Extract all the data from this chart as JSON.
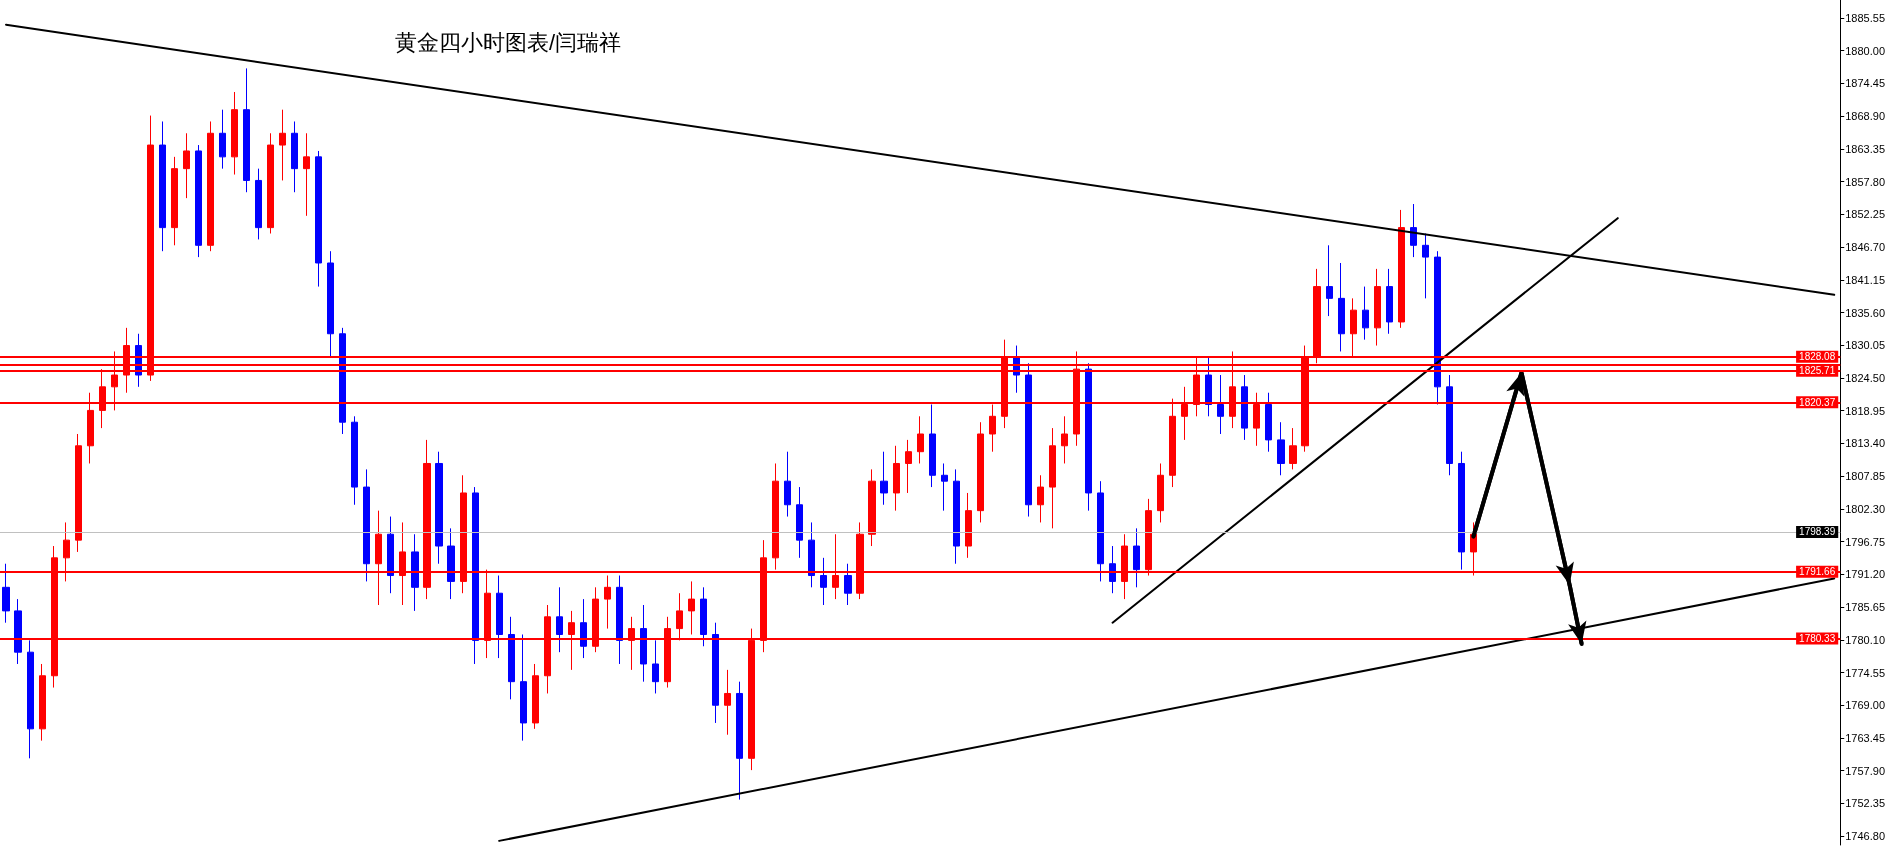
{
  "chart_data": {
    "type": "candlestick",
    "title": "黄金四小时图表/闫瑞祥",
    "categories": [
      null,
      null,
      null,
      null,
      null,
      null,
      null,
      null,
      null,
      null,
      null,
      null,
      null,
      null,
      null,
      null,
      null,
      null,
      null,
      null,
      null,
      null,
      null,
      null,
      null,
      null,
      null,
      null,
      null,
      null,
      null,
      null,
      null,
      null,
      null,
      null,
      null,
      null,
      null,
      null,
      null,
      null,
      null,
      null,
      null,
      null,
      null,
      null,
      null,
      null,
      null,
      null,
      null,
      null,
      null,
      null,
      null,
      null,
      null,
      null,
      null,
      null,
      null,
      null,
      null,
      null,
      null,
      null,
      null,
      null,
      null,
      null,
      null,
      null,
      null,
      null,
      null,
      null,
      null,
      null,
      null,
      null,
      null,
      null,
      null,
      null,
      null,
      null,
      null,
      null,
      null,
      null,
      null,
      null,
      null,
      null,
      null,
      null,
      null,
      null,
      null,
      null,
      null,
      null,
      null,
      null,
      null,
      null,
      null,
      null,
      null,
      null,
      null,
      null,
      null,
      null,
      null,
      null,
      null,
      null,
      null,
      null,
      null,
      null,
      null,
      null,
      null,
      null,
      null,
      null,
      null,
      null,
      null,
      null,
      null,
      null,
      null,
      null,
      null,
      null,
      null,
      null,
      null,
      null,
      null,
      null,
      null,
      null,
      null,
      null,
      null,
      null,
      null
    ],
    "ohlc": [
      [
        1789,
        1793,
        1783,
        1785
      ],
      [
        1785,
        1787,
        1776,
        1778
      ],
      [
        1778,
        1780,
        1760,
        1765
      ],
      [
        1765,
        1776,
        1763,
        1774
      ],
      [
        1774,
        1796,
        1772,
        1794
      ],
      [
        1794,
        1800,
        1790,
        1797
      ],
      [
        1797,
        1815,
        1795,
        1813
      ],
      [
        1813,
        1822,
        1810,
        1819
      ],
      [
        1819,
        1826,
        1816,
        1823
      ],
      [
        1823,
        1829,
        1819,
        1825
      ],
      [
        1825,
        1833,
        1822,
        1830
      ],
      [
        1830,
        1832,
        1823,
        1825
      ],
      [
        1825,
        1869,
        1824,
        1864
      ],
      [
        1864,
        1868,
        1846,
        1850
      ],
      [
        1850,
        1862,
        1847,
        1860
      ],
      [
        1860,
        1866,
        1855,
        1863
      ],
      [
        1863,
        1864,
        1845,
        1847
      ],
      [
        1847,
        1868,
        1846,
        1866
      ],
      [
        1866,
        1870,
        1860,
        1862
      ],
      [
        1862,
        1873,
        1859,
        1870
      ],
      [
        1870,
        1877,
        1856,
        1858
      ],
      [
        1858,
        1860,
        1848,
        1850
      ],
      [
        1850,
        1866,
        1849,
        1864
      ],
      [
        1864,
        1870,
        1858,
        1866
      ],
      [
        1866,
        1868,
        1856,
        1860
      ],
      [
        1860,
        1866,
        1852,
        1862
      ],
      [
        1862,
        1863,
        1840,
        1844
      ],
      [
        1844,
        1846,
        1828,
        1832
      ],
      [
        1832,
        1833,
        1815,
        1817
      ],
      [
        1817,
        1818,
        1803,
        1806
      ],
      [
        1806,
        1809,
        1790,
        1793
      ],
      [
        1793,
        1802,
        1786,
        1798
      ],
      [
        1798,
        1801,
        1788,
        1791
      ],
      [
        1791,
        1800,
        1786,
        1795
      ],
      [
        1795,
        1798,
        1785,
        1789
      ],
      [
        1789,
        1814,
        1787,
        1810
      ],
      [
        1810,
        1812,
        1793,
        1796
      ],
      [
        1796,
        1799,
        1787,
        1790
      ],
      [
        1790,
        1808,
        1788,
        1805
      ],
      [
        1805,
        1806,
        1776,
        1780
      ],
      [
        1780,
        1792,
        1777,
        1788
      ],
      [
        1788,
        1791,
        1777,
        1781
      ],
      [
        1781,
        1784,
        1770,
        1773
      ],
      [
        1773,
        1781,
        1763,
        1766
      ],
      [
        1766,
        1776,
        1765,
        1774
      ],
      [
        1774,
        1786,
        1771,
        1784
      ],
      [
        1784,
        1789,
        1778,
        1781
      ],
      [
        1781,
        1785,
        1775,
        1783
      ],
      [
        1783,
        1787,
        1777,
        1779
      ],
      [
        1779,
        1789,
        1778,
        1787
      ],
      [
        1787,
        1791,
        1782,
        1789
      ],
      [
        1789,
        1791,
        1776,
        1780
      ],
      [
        1780,
        1784,
        1775,
        1782
      ],
      [
        1782,
        1786,
        1773,
        1776
      ],
      [
        1776,
        1780,
        1771,
        1773
      ],
      [
        1773,
        1784,
        1772,
        1782
      ],
      [
        1782,
        1788,
        1780,
        1785
      ],
      [
        1785,
        1790,
        1781,
        1787
      ],
      [
        1787,
        1789,
        1779,
        1781
      ],
      [
        1781,
        1783,
        1766,
        1769
      ],
      [
        1769,
        1775,
        1764,
        1771
      ],
      [
        1771,
        1773,
        1753,
        1760
      ],
      [
        1760,
        1782,
        1758,
        1780
      ],
      [
        1780,
        1797,
        1778,
        1794
      ],
      [
        1794,
        1810,
        1792,
        1807
      ],
      [
        1807,
        1812,
        1801,
        1803
      ],
      [
        1803,
        1806,
        1794,
        1797
      ],
      [
        1797,
        1800,
        1789,
        1791
      ],
      [
        1791,
        1794,
        1786,
        1789
      ],
      [
        1789,
        1798,
        1787,
        1791
      ],
      [
        1791,
        1793,
        1786,
        1788
      ],
      [
        1788,
        1800,
        1787,
        1798
      ],
      [
        1798,
        1809,
        1796,
        1807
      ],
      [
        1807,
        1812,
        1803,
        1805
      ],
      [
        1805,
        1813,
        1802,
        1810
      ],
      [
        1810,
        1814,
        1805,
        1812
      ],
      [
        1812,
        1818,
        1810,
        1815
      ],
      [
        1815,
        1820,
        1806,
        1808
      ],
      [
        1808,
        1810,
        1802,
        1807
      ],
      [
        1807,
        1809,
        1793,
        1796
      ],
      [
        1796,
        1805,
        1794,
        1802
      ],
      [
        1802,
        1817,
        1800,
        1815
      ],
      [
        1815,
        1820,
        1812,
        1818
      ],
      [
        1818,
        1831,
        1816,
        1828
      ],
      [
        1828,
        1830,
        1822,
        1825
      ],
      [
        1825,
        1827,
        1801,
        1803
      ],
      [
        1803,
        1808,
        1800,
        1806
      ],
      [
        1806,
        1816,
        1799,
        1813
      ],
      [
        1813,
        1818,
        1810,
        1815
      ],
      [
        1815,
        1829,
        1813,
        1826
      ],
      [
        1826,
        1827,
        1802,
        1805
      ],
      [
        1805,
        1807,
        1790,
        1793
      ],
      [
        1793,
        1796,
        1788,
        1790
      ],
      [
        1790,
        1798,
        1787,
        1796
      ],
      [
        1796,
        1799,
        1789,
        1792
      ],
      [
        1792,
        1804,
        1791,
        1802
      ],
      [
        1802,
        1810,
        1800,
        1808
      ],
      [
        1808,
        1821,
        1806,
        1818
      ],
      [
        1818,
        1823,
        1814,
        1820
      ],
      [
        1820,
        1828,
        1818,
        1825
      ],
      [
        1825,
        1828,
        1818,
        1820
      ],
      [
        1820,
        1825,
        1815,
        1818
      ],
      [
        1818,
        1829,
        1816,
        1823
      ],
      [
        1823,
        1825,
        1814,
        1816
      ],
      [
        1816,
        1822,
        1813,
        1820
      ],
      [
        1820,
        1822,
        1812,
        1814
      ],
      [
        1814,
        1817,
        1808,
        1810
      ],
      [
        1810,
        1816,
        1809,
        1813
      ],
      [
        1813,
        1830,
        1812,
        1828
      ],
      [
        1828,
        1843,
        1827,
        1840
      ],
      [
        1840,
        1847,
        1835,
        1838
      ],
      [
        1838,
        1844,
        1829,
        1832
      ],
      [
        1832,
        1838,
        1828,
        1836
      ],
      [
        1836,
        1840,
        1831,
        1833
      ],
      [
        1833,
        1843,
        1830,
        1840
      ],
      [
        1840,
        1843,
        1832,
        1834
      ],
      [
        1834,
        1853,
        1833,
        1850
      ],
      [
        1850,
        1854,
        1845,
        1847
      ],
      [
        1847,
        1849,
        1838,
        1845
      ],
      [
        1845,
        1846,
        1820,
        1823
      ],
      [
        1823,
        1825,
        1808,
        1810
      ],
      [
        1810,
        1812,
        1792,
        1795
      ],
      [
        1795,
        1800,
        1791,
        1798
      ],
      null,
      null,
      null,
      null,
      null,
      null,
      null,
      null,
      null,
      null,
      null,
      null,
      null,
      null,
      null,
      null,
      null,
      null,
      null,
      null,
      null,
      null,
      null,
      null,
      null,
      null,
      null,
      null,
      null,
      null
    ],
    "colors": [
      "#0000ff",
      "#0000ff",
      "#0000ff",
      "#ff0000",
      "#ff0000",
      "#ff0000",
      "#ff0000",
      "#ff0000",
      "#ff0000",
      "#ff0000",
      "#ff0000",
      "#0000ff",
      "#ff0000",
      "#0000ff",
      "#ff0000",
      "#ff0000",
      "#0000ff",
      "#ff0000",
      "#0000ff",
      "#ff0000",
      "#0000ff",
      "#0000ff",
      "#ff0000",
      "#ff0000",
      "#0000ff",
      "#ff0000",
      "#0000ff",
      "#0000ff",
      "#0000ff",
      "#0000ff",
      "#0000ff",
      "#ff0000",
      "#0000ff",
      "#ff0000",
      "#0000ff",
      "#ff0000",
      "#0000ff",
      "#0000ff",
      "#ff0000",
      "#0000ff",
      "#ff0000",
      "#0000ff",
      "#0000ff",
      "#0000ff",
      "#ff0000",
      "#ff0000",
      "#0000ff",
      "#ff0000",
      "#0000ff",
      "#ff0000",
      "#ff0000",
      "#0000ff",
      "#ff0000",
      "#0000ff",
      "#0000ff",
      "#ff0000",
      "#ff0000",
      "#ff0000",
      "#0000ff",
      "#0000ff",
      "#ff0000",
      "#0000ff",
      "#ff0000",
      "#ff0000",
      "#ff0000",
      "#0000ff",
      "#0000ff",
      "#0000ff",
      "#0000ff",
      "#ff0000",
      "#0000ff",
      "#ff0000",
      "#ff0000",
      "#0000ff",
      "#ff0000",
      "#ff0000",
      "#ff0000",
      "#0000ff",
      "#0000ff",
      "#0000ff",
      "#ff0000",
      "#ff0000",
      "#ff0000",
      "#ff0000",
      "#0000ff",
      "#0000ff",
      "#ff0000",
      "#ff0000",
      "#ff0000",
      "#ff0000",
      "#0000ff",
      "#0000ff",
      "#0000ff",
      "#ff0000",
      "#0000ff",
      "#ff0000",
      "#ff0000",
      "#ff0000",
      "#ff0000",
      "#ff0000",
      "#0000ff",
      "#0000ff",
      "#ff0000",
      "#0000ff",
      "#ff0000",
      "#0000ff",
      "#0000ff",
      "#ff0000",
      "#ff0000",
      "#ff0000",
      "#0000ff",
      "#0000ff",
      "#ff0000",
      "#0000ff",
      "#ff0000",
      "#0000ff",
      "#ff0000",
      "#0000ff",
      "#0000ff",
      "#0000ff",
      "#0000ff",
      "#0000ff",
      "#ff0000",
      null,
      null,
      null,
      null,
      null,
      null,
      null,
      null,
      null,
      null,
      null,
      null,
      null,
      null,
      null,
      null,
      null,
      null,
      null,
      null,
      null,
      null,
      null,
      null,
      null,
      null,
      null,
      null,
      null,
      null
    ],
    "series": [
      {
        "type": "line",
        "color": "#000000",
        "values": [
          1884.4,
          null,
          null,
          null,
          null,
          null,
          null,
          null,
          null,
          null,
          null,
          null,
          null,
          null,
          null,
          null,
          null,
          null,
          null,
          null,
          null,
          null,
          null,
          null,
          null,
          null,
          null,
          null,
          null,
          null,
          null,
          null,
          null,
          null,
          null,
          null,
          null,
          null,
          null,
          null,
          null,
          null,
          null,
          null,
          null,
          null,
          null,
          null,
          null,
          null,
          null,
          null,
          null,
          null,
          null,
          null,
          null,
          null,
          null,
          null,
          null,
          null,
          null,
          null,
          null,
          null,
          null,
          null,
          null,
          null,
          null,
          null,
          null,
          null,
          null,
          null,
          null,
          null,
          null,
          null,
          null,
          null,
          null,
          null,
          null,
          null,
          null,
          null,
          null,
          null,
          null,
          null,
          null,
          null,
          null,
          null,
          null,
          null,
          null,
          null,
          null,
          null,
          null,
          null,
          null,
          null,
          null,
          null,
          null,
          null,
          null,
          null,
          null,
          null,
          null,
          null,
          null,
          null,
          null,
          null,
          null,
          null,
          null,
          null,
          null,
          null,
          null,
          null,
          null,
          null,
          null,
          null,
          null,
          null,
          null,
          null,
          null,
          null,
          null,
          null,
          null,
          null,
          null,
          null,
          null,
          null,
          null,
          null,
          null,
          null,
          null,
          null,
          1838.6
        ]
      },
      {
        "type": "line",
        "color": "#000000",
        "values": [
          null,
          null,
          null,
          null,
          null,
          null,
          null,
          null,
          null,
          null,
          null,
          null,
          null,
          null,
          null,
          null,
          null,
          null,
          null,
          null,
          null,
          null,
          null,
          null,
          null,
          null,
          null,
          null,
          null,
          null,
          null,
          null,
          null,
          null,
          null,
          null,
          null,
          null,
          null,
          null,
          null,
          1746.0,
          null,
          null,
          null,
          null,
          null,
          null,
          null,
          null,
          null,
          null,
          null,
          null,
          null,
          null,
          null,
          null,
          null,
          null,
          null,
          null,
          null,
          null,
          null,
          null,
          null,
          null,
          null,
          null,
          null,
          null,
          null,
          null,
          null,
          null,
          null,
          null,
          null,
          null,
          null,
          null,
          null,
          null,
          null,
          null,
          null,
          null,
          null,
          null,
          null,
          null,
          null,
          null,
          null,
          null,
          null,
          null,
          null,
          null,
          null,
          null,
          null,
          null,
          null,
          null,
          null,
          null,
          null,
          null,
          null,
          null,
          null,
          null,
          null,
          null,
          null,
          null,
          null,
          null,
          null,
          null,
          null,
          null,
          null,
          null,
          null,
          null,
          null,
          null,
          null,
          null,
          null,
          null,
          null,
          null,
          null,
          null,
          null,
          null,
          null,
          null,
          null,
          null,
          null,
          null,
          null,
          null,
          null,
          null,
          null,
          null,
          1790.5
        ]
      },
      {
        "type": "line",
        "color": "#000000",
        "values": [
          null,
          null,
          null,
          null,
          null,
          null,
          null,
          null,
          null,
          null,
          null,
          null,
          null,
          null,
          null,
          null,
          null,
          null,
          null,
          null,
          null,
          null,
          null,
          null,
          null,
          null,
          null,
          null,
          null,
          null,
          null,
          null,
          null,
          null,
          null,
          null,
          null,
          null,
          null,
          null,
          null,
          null,
          null,
          null,
          null,
          null,
          null,
          null,
          null,
          null,
          null,
          null,
          null,
          null,
          null,
          null,
          null,
          null,
          null,
          null,
          null,
          null,
          null,
          null,
          null,
          null,
          null,
          null,
          null,
          null,
          null,
          null,
          null,
          null,
          null,
          null,
          null,
          null,
          null,
          null,
          null,
          null,
          null,
          null,
          null,
          null,
          null,
          null,
          null,
          null,
          null,
          null,
          1783.0,
          null,
          null,
          null,
          null,
          null,
          null,
          null,
          null,
          null,
          null,
          null,
          null,
          null,
          null,
          null,
          null,
          null,
          null,
          null,
          null,
          null,
          null,
          null,
          null,
          null,
          null,
          null,
          null,
          null,
          null,
          null,
          null,
          null,
          null,
          null,
          null,
          null,
          null,
          null,
          null,
          null,
          1851.6,
          null,
          null,
          null,
          null,
          null,
          null,
          null,
          null,
          null,
          null,
          null,
          null,
          null,
          null,
          null,
          null,
          null,
          null
        ]
      },
      {
        "type": "line",
        "color": "#000000",
        "values": [
          null,
          null,
          null,
          null,
          null,
          null,
          null,
          null,
          null,
          null,
          null,
          null,
          null,
          null,
          null,
          null,
          null,
          null,
          null,
          null,
          null,
          null,
          null,
          null,
          null,
          null,
          null,
          null,
          null,
          null,
          null,
          null,
          null,
          null,
          null,
          null,
          null,
          null,
          null,
          null,
          null,
          null,
          null,
          null,
          null,
          null,
          null,
          null,
          null,
          null,
          null,
          null,
          null,
          null,
          null,
          null,
          null,
          null,
          null,
          null,
          null,
          null,
          null,
          null,
          null,
          null,
          null,
          null,
          null,
          null,
          null,
          null,
          null,
          null,
          null,
          null,
          null,
          null,
          null,
          null,
          null,
          null,
          null,
          null,
          null,
          null,
          null,
          null,
          null,
          null,
          null,
          null,
          null,
          null,
          null,
          null,
          null,
          null,
          null,
          null,
          null,
          null,
          null,
          null,
          null,
          null,
          null,
          null,
          null,
          null,
          null,
          null,
          null,
          null,
          null,
          null,
          null,
          null,
          null,
          null,
          null,
          null,
          1797.6,
          null,
          null,
          null,
          1825.4,
          null,
          null,
          null,
          1789.4,
          1779.4,
          null,
          null,
          null,
          null,
          null,
          null,
          null,
          null,
          null,
          null,
          null,
          null,
          null,
          null,
          null,
          null,
          null,
          null,
          null,
          null,
          null
        ]
      }
    ],
    "ylim": [
      1745.3,
      1888.6
    ],
    "yticks": [
      1885.55,
      {
        "value": 1880,
        "label": "1880.00"
      },
      1874.45,
      {
        "value": 1868.9,
        "label": "1868.90"
      },
      1863.35,
      {
        "value": 1857.8,
        "label": "1857.80"
      },
      1852.25,
      {
        "value": 1846.7,
        "label": "1846.70"
      },
      1841.15,
      {
        "value": 1835.6,
        "label": "1835.60"
      },
      1830.05,
      {
        "value": 1824.5,
        "label": "1824.50"
      },
      1818.95,
      {
        "value": 1813.4,
        "label": "1813.40"
      },
      1807.85,
      {
        "value": 1802.3,
        "label": "1802.30"
      },
      1796.75,
      {
        "value": 1791.2,
        "label": "1791.20"
      },
      1785.65,
      {
        "value": 1780.1,
        "label": "1780.10"
      },
      1774.55,
      {
        "value": 1769,
        "label": "1769.00"
      },
      1763.45,
      {
        "value": 1757.9,
        "label": "1757.90"
      },
      1752.35,
      {
        "value": 1746.8,
        "label": "1746.80"
      }
    ],
    "ref_lines": [
      {
        "axis": "y",
        "value": 1828.08,
        "label": "1828.08",
        "color": "#ff0000"
      },
      {
        "axis": "y",
        "value": 1826.66,
        "color": "#ff0000"
      },
      {
        "axis": "y",
        "value": 1825.71,
        "label": "1825.71",
        "color": "#ff0000"
      },
      {
        "axis": "y",
        "value": 1820.37,
        "label": "1820.37",
        "color": "#ff0000"
      },
      {
        "axis": "y",
        "value": 1798.39,
        "label": "1798.39",
        "color": "#c0c0c0"
      },
      {
        "axis": "y",
        "value": 1791.66,
        "label": "1791.66",
        "color": "#ff0000"
      },
      {
        "axis": "y",
        "value": 1780.33,
        "label": "1780.33",
        "color": "#ff0000"
      }
    ],
    "tick_labels": "y",
    "grid": false
  }
}
